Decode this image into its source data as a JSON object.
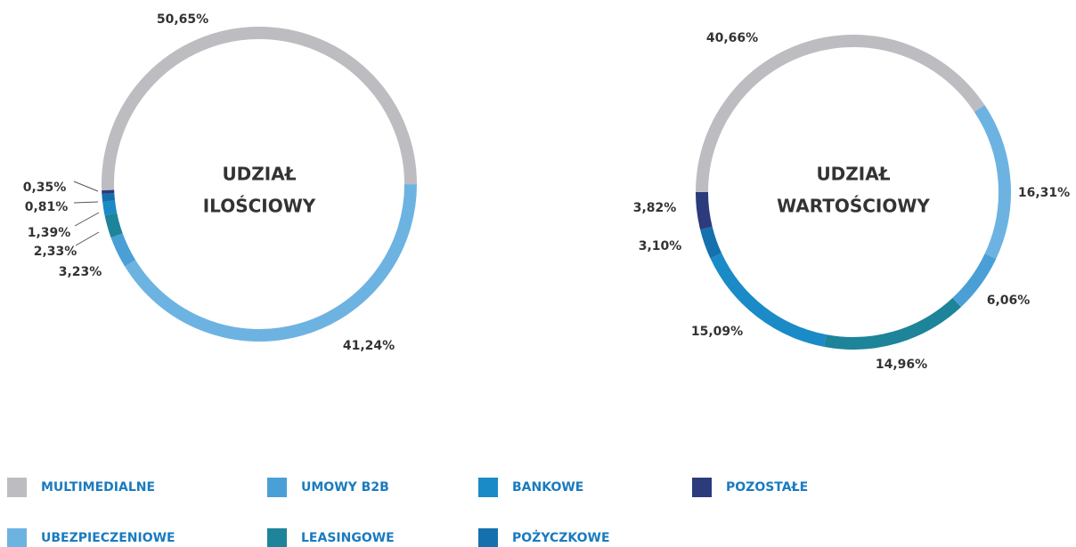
{
  "chart_data": [
    {
      "type": "donut",
      "title": [
        "UDZIAŁ",
        "ILOŚCIOWY"
      ],
      "categories": [
        "MULTIMEDIALNE",
        "UBEZPIECZENIOWE",
        "UMOWY B2B",
        "LEASINGOWE",
        "BANKOWE",
        "POŻYCZKOWE",
        "POZOSTAŁE"
      ],
      "colors": [
        "#bdbdc1",
        "#6db3e2",
        "#4a9fd6",
        "#1d8499",
        "#1a8bc6",
        "#1471ae",
        "#2c3b7b"
      ],
      "values": [
        50.65,
        41.24,
        3.23,
        2.33,
        1.39,
        0.81,
        0.35
      ],
      "value_labels": [
        "50,65%",
        "41,24%",
        "3,23%",
        "2,33%",
        "1,39%",
        "0,81%",
        "0,35%"
      ]
    },
    {
      "type": "donut",
      "title": [
        "UDZIAŁ",
        "WARTOŚCIOWY"
      ],
      "categories": [
        "MULTIMEDIALNE",
        "UBEZPIECZENIOWE",
        "UMOWY B2B",
        "LEASINGOWE",
        "BANKOWE",
        "POŻYCZKOWE",
        "POZOSTAŁE"
      ],
      "colors": [
        "#bdbdc1",
        "#6db3e2",
        "#4a9fd6",
        "#1d8499",
        "#1a8bc6",
        "#1471ae",
        "#2c3b7b"
      ],
      "values": [
        40.66,
        16.31,
        6.06,
        14.96,
        15.09,
        3.1,
        3.82
      ],
      "value_labels": [
        "40,66%",
        "16,31%",
        "6,06%",
        "14,96%",
        "15,09%",
        "3,10%",
        "3,82%"
      ]
    }
  ]
}
